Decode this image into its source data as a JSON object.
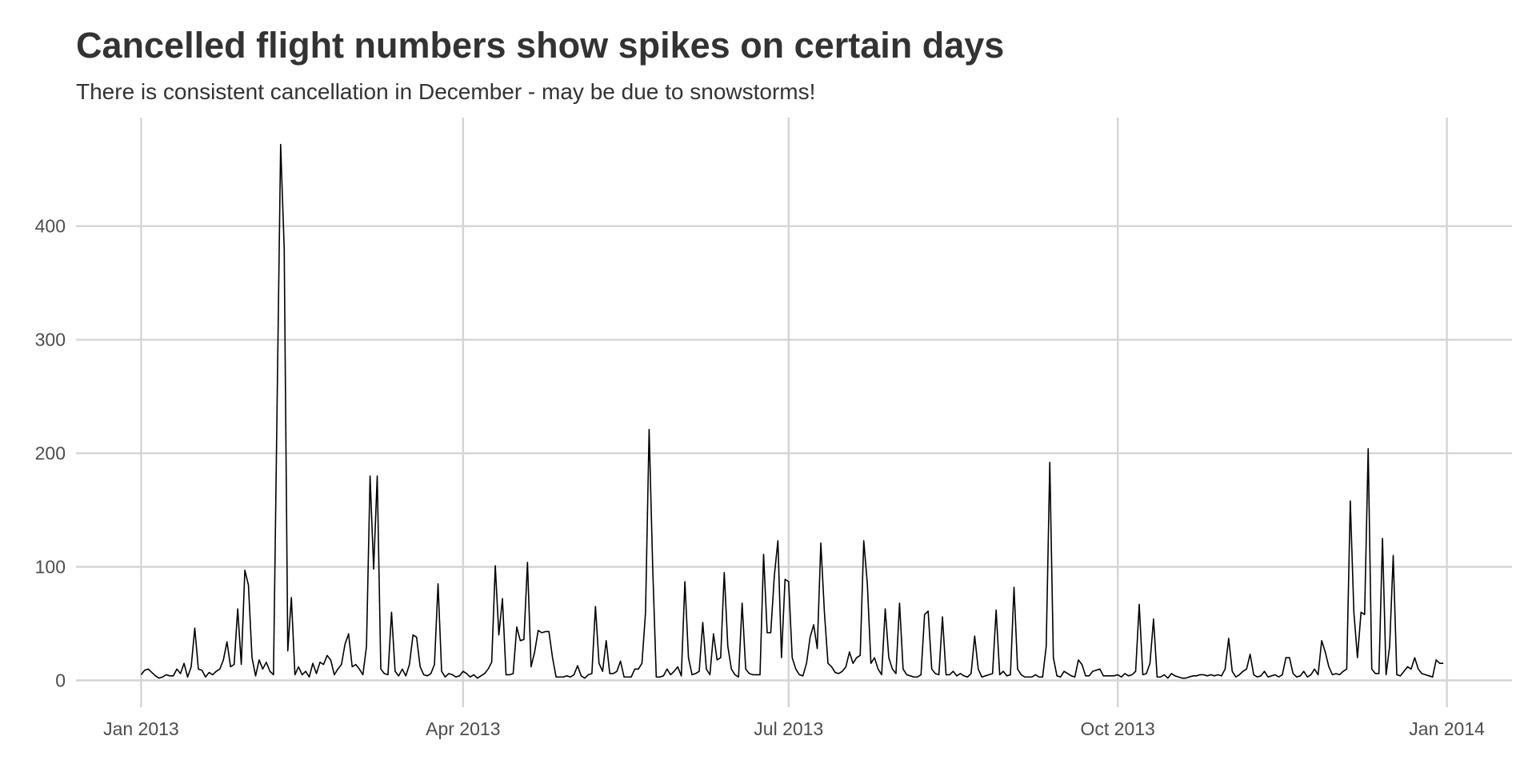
{
  "chart_data": {
    "type": "line",
    "title": "Cancelled flight numbers show spikes on certain days",
    "subtitle": "There is consistent cancellation in December - may be due to snowstorms!",
    "color": "#000000",
    "grid": true,
    "xlim": [
      -18.2,
      383.2
    ],
    "xticks": [
      {
        "value": 0,
        "label": "Jan 2013"
      },
      {
        "value": 90,
        "label": "Apr 2013"
      },
      {
        "value": 181,
        "label": "Jul 2013"
      },
      {
        "value": 273,
        "label": "Oct 2013"
      },
      {
        "value": 365,
        "label": "Jan 2014"
      }
    ],
    "ylim": [
      -23.6,
      495.6
    ],
    "yticks": [
      0,
      100,
      200,
      300,
      400
    ],
    "values": [
      5,
      9,
      10,
      7,
      4,
      2,
      3,
      5,
      4,
      4,
      10,
      6,
      15,
      3,
      12,
      46,
      10,
      9,
      3,
      7,
      5,
      8,
      10,
      18,
      34,
      12,
      14,
      63,
      14,
      97,
      84,
      20,
      4,
      18,
      10,
      16,
      8,
      5,
      240,
      472,
      380,
      26,
      73,
      5,
      12,
      5,
      8,
      3,
      15,
      6,
      16,
      14,
      22,
      18,
      5,
      10,
      14,
      32,
      41,
      12,
      14,
      10,
      5,
      30,
      180,
      98,
      180,
      10,
      6,
      5,
      60,
      8,
      4,
      10,
      4,
      14,
      40,
      38,
      12,
      5,
      4,
      6,
      14,
      85,
      8,
      3,
      6,
      5,
      3,
      4,
      8,
      6,
      3,
      5,
      2,
      4,
      6,
      10,
      16,
      101,
      40,
      72,
      5,
      5,
      6,
      47,
      35,
      36,
      104,
      12,
      25,
      44,
      42,
      43,
      43,
      20,
      3,
      3,
      3,
      4,
      3,
      5,
      13,
      4,
      2,
      5,
      6,
      65,
      15,
      8,
      35,
      6,
      6,
      8,
      17,
      3,
      3,
      3,
      10,
      10,
      15,
      60,
      221,
      100,
      3,
      3,
      4,
      10,
      5,
      8,
      12,
      4,
      87,
      20,
      5,
      6,
      8,
      51,
      10,
      5,
      41,
      18,
      20,
      95,
      30,
      10,
      5,
      3,
      68,
      10,
      6,
      5,
      5,
      5,
      111,
      42,
      42,
      92,
      123,
      20,
      89,
      87,
      20,
      10,
      5,
      4,
      15,
      38,
      49,
      28,
      121,
      60,
      15,
      12,
      7,
      6,
      8,
      12,
      25,
      15,
      20,
      22,
      123,
      85,
      15,
      20,
      10,
      5,
      63,
      20,
      10,
      6,
      68,
      10,
      5,
      4,
      3,
      3,
      5,
      58,
      61,
      10,
      6,
      5,
      56,
      5,
      5,
      8,
      4,
      6,
      4,
      3,
      6,
      39,
      10,
      3,
      4,
      5,
      6,
      62,
      5,
      8,
      4,
      5,
      82,
      10,
      5,
      3,
      3,
      3,
      5,
      3,
      3,
      30,
      192,
      20,
      4,
      3,
      8,
      6,
      4,
      3,
      18,
      14,
      4,
      4,
      8,
      9,
      10,
      4,
      4,
      4,
      4,
      5,
      3,
      6,
      4,
      5,
      8,
      67,
      5,
      6,
      15,
      54,
      3,
      3,
      5,
      2,
      6,
      4,
      3,
      2,
      2,
      3,
      4,
      4,
      5,
      5,
      4,
      5,
      4,
      5,
      4,
      10,
      37,
      8,
      3,
      5,
      8,
      10,
      23,
      5,
      3,
      4,
      8,
      3,
      4,
      5,
      3,
      5,
      20,
      20,
      6,
      3,
      4,
      8,
      3,
      5,
      10,
      5,
      35,
      25,
      12,
      5,
      6,
      5,
      8,
      10,
      158,
      60,
      20,
      60,
      58,
      204,
      10,
      6,
      6,
      125,
      5,
      30,
      110,
      5,
      4,
      8,
      12,
      10,
      20,
      10,
      6,
      5,
      4,
      3,
      18,
      15,
      15
    ]
  }
}
